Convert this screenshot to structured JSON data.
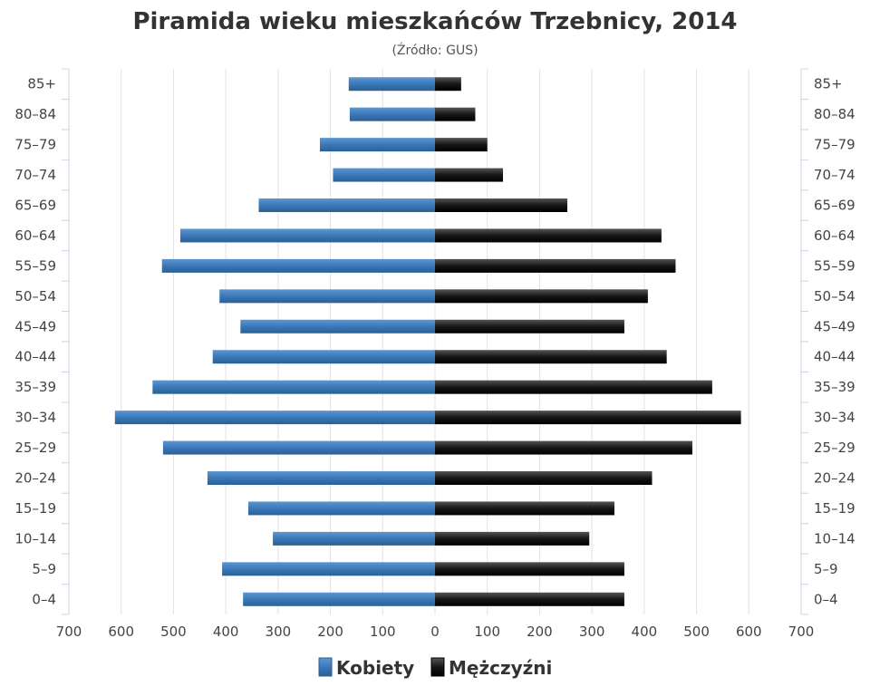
{
  "chart_data": {
    "type": "bar",
    "orientation": "horizontal",
    "title": "Piramida wieku mieszkańców Trzebnicy, 2014",
    "subtitle": "(Źródło: GUS)",
    "categories": [
      "85+",
      "80–84",
      "75–79",
      "70–74",
      "65–69",
      "60–64",
      "55–59",
      "50–54",
      "45–49",
      "40–44",
      "35–39",
      "30–34",
      "25–29",
      "20–24",
      "15–19",
      "10–14",
      "5–9",
      "0–4"
    ],
    "series": [
      {
        "name": "Kobiety",
        "color": "#3a78b8",
        "values": [
          165,
          163,
          220,
          195,
          337,
          487,
          522,
          412,
          372,
          425,
          540,
          612,
          520,
          435,
          357,
          310,
          407,
          367
        ]
      },
      {
        "name": "Mężczyźni",
        "color": "#111111",
        "values": [
          50,
          77,
          100,
          130,
          253,
          433,
          460,
          407,
          362,
          443,
          530,
          585,
          492,
          415,
          343,
          295,
          362,
          362
        ]
      }
    ],
    "x_ticks": [
      "700",
      "600",
      "500",
      "400",
      "300",
      "200",
      "100",
      "0",
      "100",
      "200",
      "300",
      "400",
      "500",
      "600",
      "700"
    ],
    "xlim": [
      -700,
      700
    ],
    "grid": "vertical",
    "legend_position": "bottom-center"
  }
}
